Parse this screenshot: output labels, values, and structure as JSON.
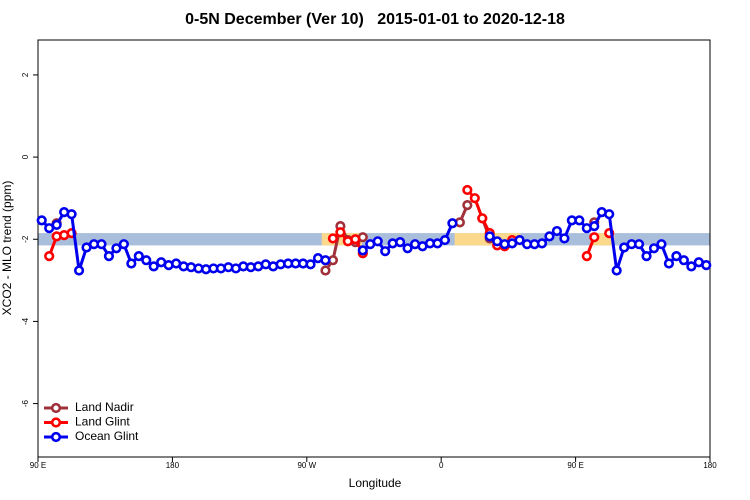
{
  "chart_data": {
    "type": "line",
    "title": "0-5N December (Ver 10)   2015-01-01 to 2020-12-18",
    "xlabel": "Longitude",
    "ylabel": "XCO2 - MLO trend (ppm)",
    "x": [
      92.5,
      97.5,
      102.5,
      107.5,
      112.5,
      117.5,
      122.5,
      127.5,
      132.5,
      137.5,
      142.5,
      147.5,
      152.5,
      157.5,
      162.5,
      167.5,
      172.5,
      177.5,
      182.5,
      187.5,
      192.5,
      197.5,
      202.5,
      207.5,
      212.5,
      217.5,
      222.5,
      227.5,
      232.5,
      237.5,
      242.5,
      247.5,
      252.5,
      257.5,
      262.5,
      267.5,
      272.5,
      277.5,
      282.5,
      287.5,
      292.5,
      297.5,
      302.5,
      307.5,
      312.5,
      317.5,
      322.5,
      327.5,
      332.5,
      337.5,
      342.5,
      347.5,
      352.5,
      357.5,
      362.5,
      367.5,
      372.5,
      377.5,
      382.5,
      387.5,
      392.5,
      397.5,
      402.5,
      407.5,
      412.5,
      417.5,
      422.5,
      427.5,
      432.5,
      437.5,
      442.5,
      447.5,
      452.5,
      457.5,
      462.5,
      467.5,
      472.5,
      477.5,
      482.5,
      487.5,
      492.5,
      497.5,
      502.5,
      507.5,
      512.5,
      517.5,
      522.5,
      527.5,
      532.5,
      537.5
    ],
    "series": [
      {
        "name": "Land Nadir",
        "color": "#a0303a",
        "values": [
          null,
          null,
          -1.61,
          null,
          null,
          null,
          null,
          null,
          null,
          null,
          null,
          null,
          null,
          null,
          null,
          null,
          null,
          null,
          null,
          null,
          null,
          null,
          null,
          null,
          null,
          null,
          null,
          null,
          null,
          null,
          null,
          null,
          null,
          null,
          null,
          null,
          null,
          null,
          -2.76,
          -2.51,
          -1.68,
          -2.02,
          -2.07,
          -1.95,
          null,
          null,
          null,
          null,
          null,
          null,
          null,
          null,
          null,
          null,
          null,
          null,
          -1.59,
          -1.17,
          null,
          -1.49,
          -1.98,
          null,
          null,
          null,
          null,
          null,
          null,
          null,
          null,
          null,
          null,
          null,
          null,
          null,
          -1.59,
          null,
          null,
          null,
          null,
          null,
          null,
          null,
          null,
          null,
          null,
          null,
          null,
          null,
          null,
          null
        ]
      },
      {
        "name": "Land Glint",
        "color": "#ff0000",
        "values": [
          null,
          -2.41,
          -1.93,
          -1.9,
          -1.85,
          null,
          null,
          null,
          null,
          null,
          null,
          null,
          null,
          null,
          null,
          null,
          null,
          null,
          null,
          null,
          null,
          null,
          null,
          null,
          null,
          null,
          null,
          null,
          null,
          null,
          null,
          null,
          null,
          null,
          null,
          null,
          null,
          null,
          null,
          -1.98,
          -1.83,
          -2.05,
          -2.0,
          -2.34,
          null,
          null,
          null,
          null,
          null,
          null,
          null,
          null,
          null,
          null,
          null,
          null,
          null,
          -0.8,
          -1.0,
          -1.49,
          -1.85,
          -2.15,
          -2.17,
          -2.02,
          null,
          null,
          null,
          null,
          null,
          null,
          null,
          null,
          null,
          -2.41,
          -1.95,
          null,
          -1.85,
          null,
          null,
          null,
          null,
          null,
          null,
          null,
          null,
          null,
          null,
          null,
          null,
          null
        ]
      },
      {
        "name": "Ocean Glint",
        "color": "#0000ee",
        "values": [
          -1.54,
          -1.73,
          -1.65,
          -1.34,
          -1.39,
          -2.76,
          -2.2,
          -2.12,
          -2.12,
          -2.41,
          -2.22,
          -2.12,
          -2.59,
          -2.41,
          -2.51,
          -2.66,
          -2.56,
          -2.63,
          -2.59,
          -2.66,
          -2.68,
          -2.71,
          -2.73,
          -2.71,
          -2.71,
          -2.68,
          -2.71,
          -2.66,
          -2.68,
          -2.66,
          -2.61,
          -2.66,
          -2.61,
          -2.59,
          -2.59,
          -2.59,
          -2.61,
          -2.46,
          -2.51,
          null,
          null,
          null,
          null,
          -2.27,
          -2.12,
          -2.05,
          -2.29,
          -2.1,
          -2.07,
          -2.22,
          -2.12,
          -2.17,
          -2.1,
          -2.1,
          -2.02,
          -1.61,
          null,
          null,
          null,
          null,
          -1.93,
          -2.05,
          -2.12,
          -2.1,
          -2.02,
          -2.12,
          -2.12,
          -2.1,
          -1.93,
          -1.8,
          -1.98,
          -1.54,
          -1.54,
          -1.73,
          -1.68,
          -1.34,
          -1.39,
          -2.76,
          -2.2,
          -2.12,
          -2.12,
          -2.41,
          -2.22,
          -2.12,
          -2.59,
          -2.41,
          -2.51,
          -2.66,
          -2.56,
          -2.63
        ]
      }
    ],
    "bands": [
      {
        "color": "#a9bedb",
        "from": 90,
        "to": 540,
        "low": -2.15,
        "high": -1.85
      },
      {
        "color": "#fbd98c",
        "from": 280,
        "to": 307,
        "low": -2.15,
        "high": -1.85
      },
      {
        "color": "#fbd98c",
        "from": 369,
        "to": 413,
        "low": -2.15,
        "high": -1.85
      },
      {
        "color": "#fbd98c",
        "from": 460,
        "to": 476,
        "low": -2.15,
        "high": -1.85
      }
    ],
    "xlim": [
      90,
      540
    ],
    "ylim": [
      -7.3,
      2.85
    ],
    "xticks": [
      {
        "value": 90,
        "label": "90 E"
      },
      180,
      {
        "value": 270,
        "label": "90 W"
      },
      {
        "value": 360,
        "label": "0"
      },
      {
        "value": 450,
        "label": "90 E"
      },
      {
        "value": 540,
        "label": "180"
      }
    ],
    "yticks": [
      2,
      0,
      -2,
      -4,
      -6
    ],
    "legend": "bottom-left",
    "grid": false
  }
}
